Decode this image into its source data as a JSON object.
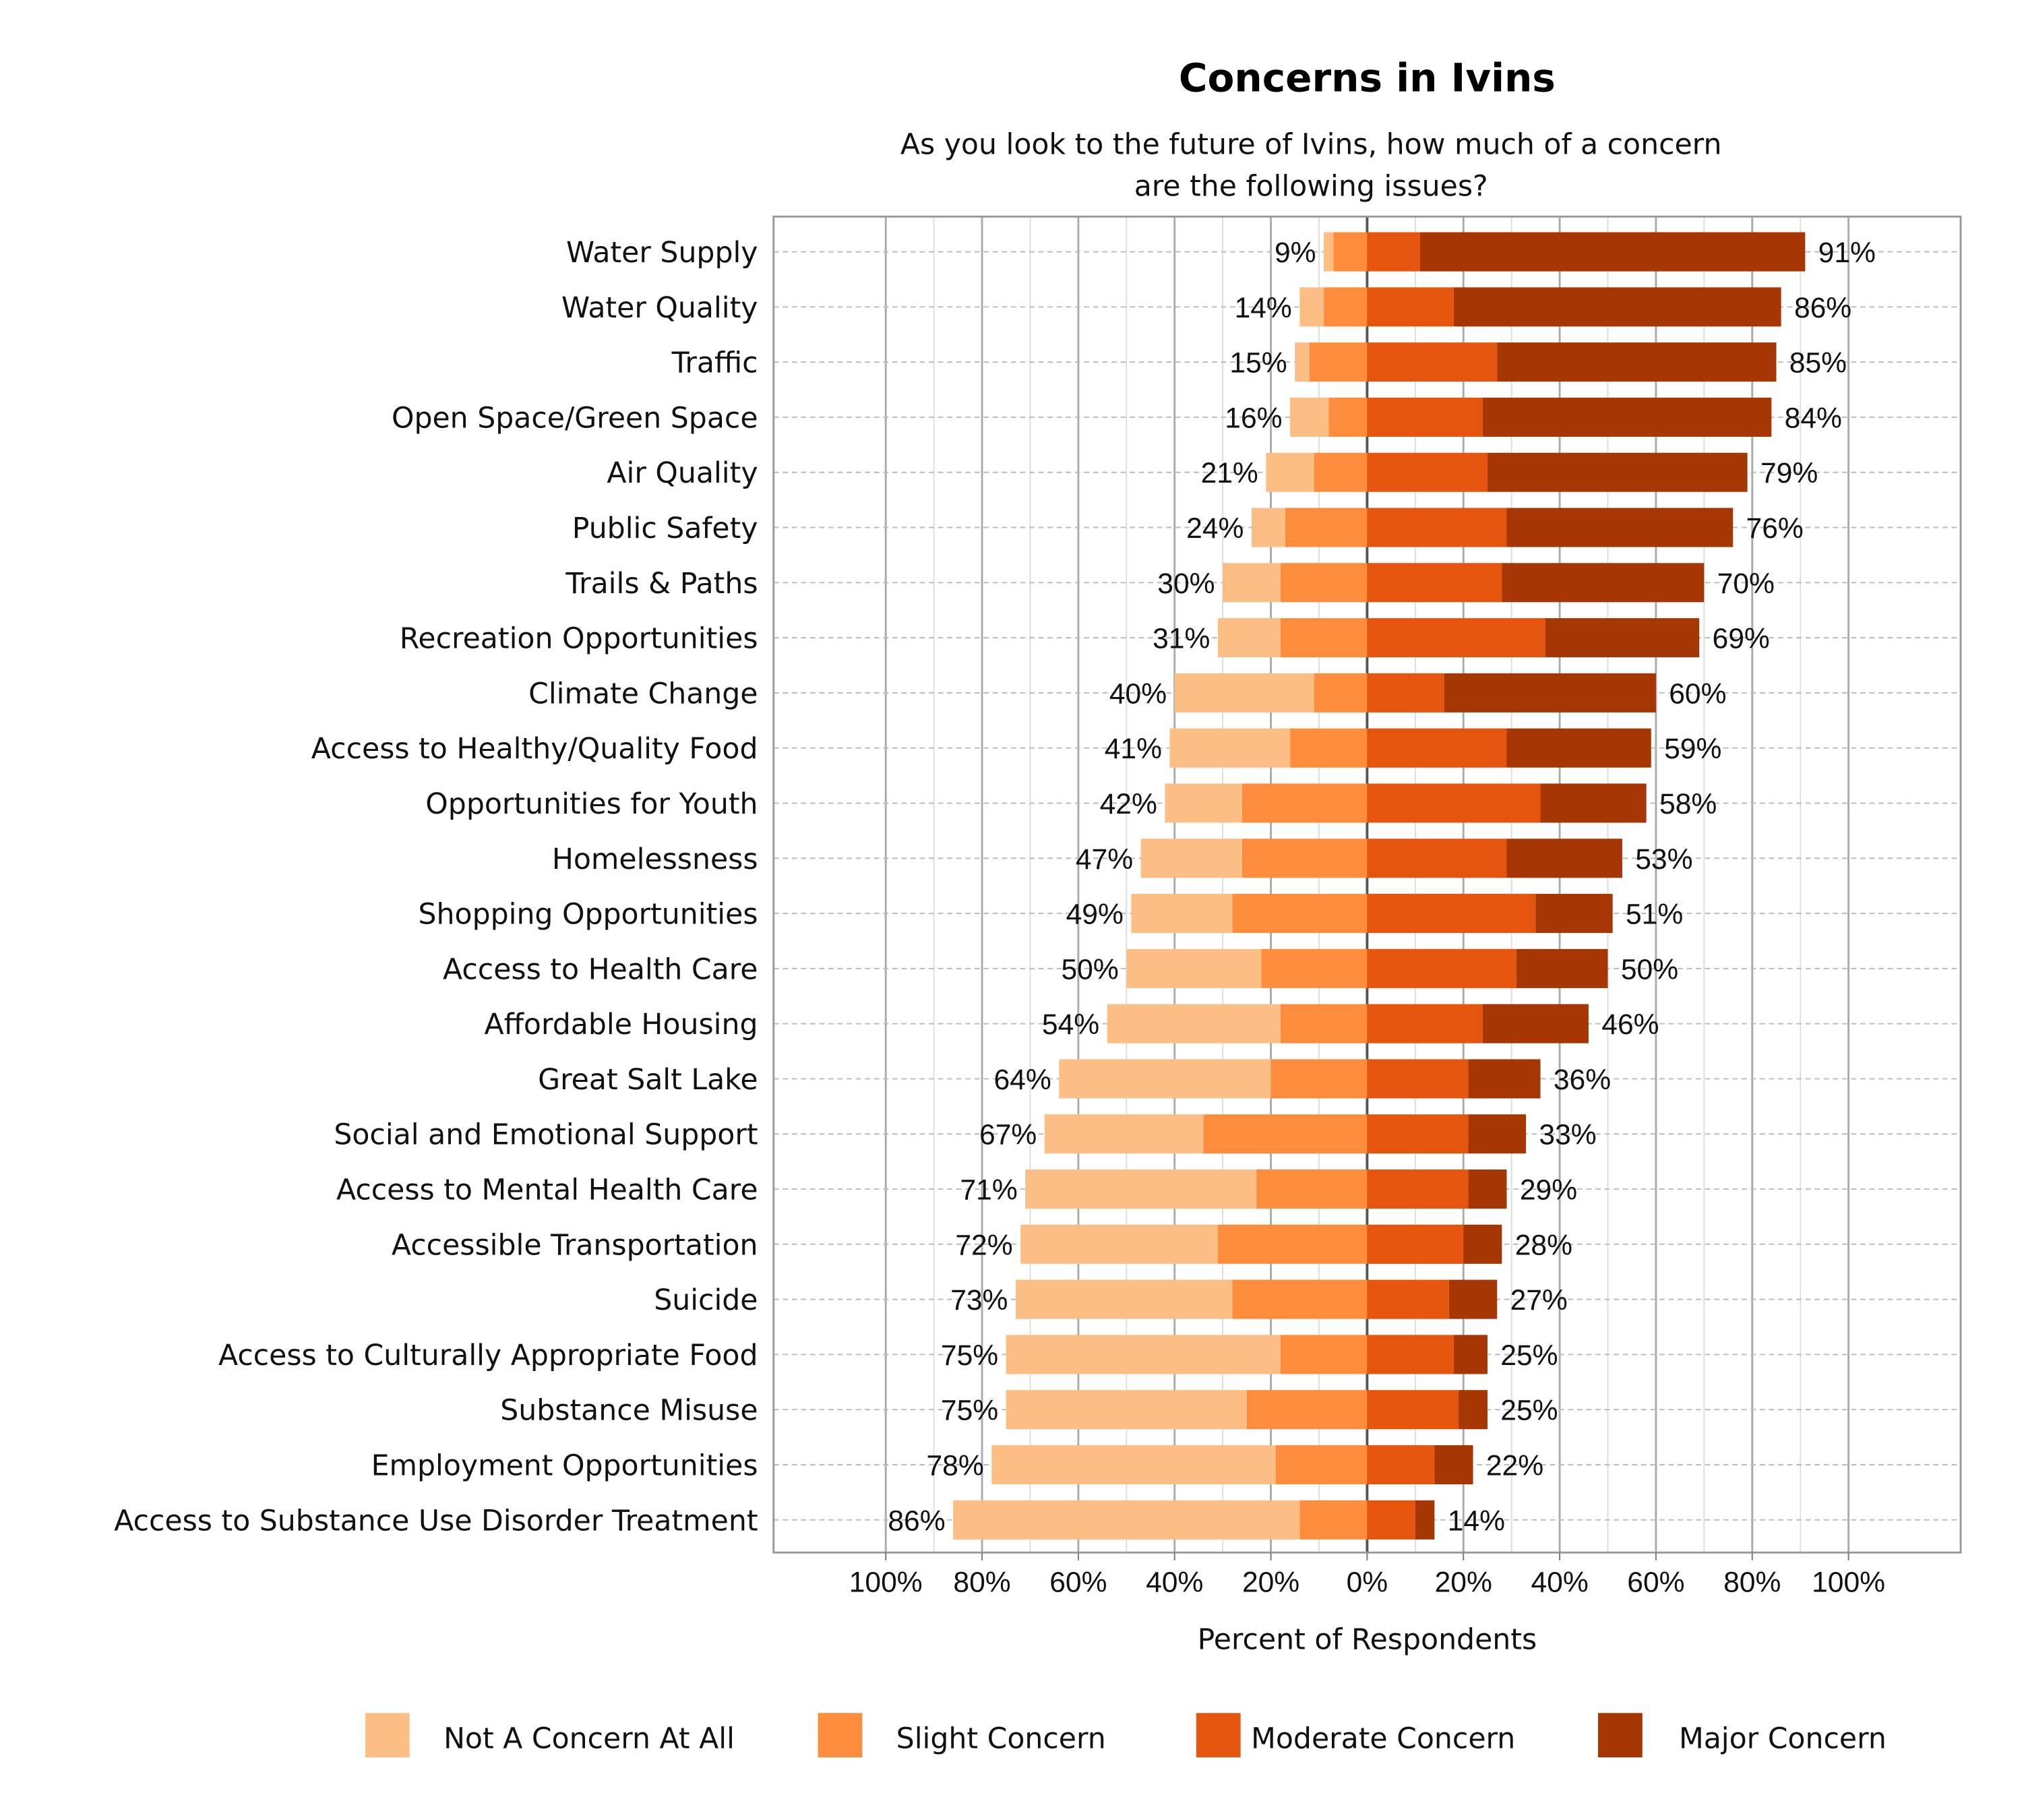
{
  "chart_data": {
    "type": "bar",
    "orientation": "horizontal-diverging-stacked",
    "title": "Concerns in Ivins",
    "subtitle": [
      "As you look to the future of Ivins, how much of a concern",
      "are the following issues?"
    ],
    "xlabel": "Percent of Respondents",
    "xlim": [
      -100,
      100
    ],
    "x_ticks": [
      "100%",
      "80%",
      "60%",
      "40%",
      "20%",
      "0%",
      "20%",
      "40%",
      "60%",
      "80%",
      "100%"
    ],
    "grid": true,
    "legend_position": "bottom",
    "categories": [
      "Water Supply",
      "Water Quality",
      "Traffic",
      "Open Space/Green Space",
      "Air Quality",
      "Public Safety",
      "Trails & Paths",
      "Recreation Opportunities",
      "Climate Change",
      "Access to Healthy/Quality Food",
      "Opportunities for Youth",
      "Homelessness",
      "Shopping Opportunities",
      "Access to Health Care",
      "Affordable Housing",
      "Great Salt Lake",
      "Social and Emotional Support",
      "Access to Mental Health Care",
      "Accessible Transportation",
      "Suicide",
      "Access to Culturally Appropriate Food",
      "Substance Misuse",
      "Employment Opportunities",
      "Access to Substance Use Disorder Treatment"
    ],
    "series": [
      {
        "name": "Not A Concern At All",
        "side": "left",
        "color": "#FDBE85",
        "values": [
          2,
          5,
          3,
          8,
          10,
          7,
          12,
          13,
          29,
          25,
          16,
          21,
          21,
          28,
          36,
          44,
          33,
          48,
          41,
          45,
          57,
          50,
          59,
          72
        ]
      },
      {
        "name": "Slight Concern",
        "side": "left",
        "color": "#FD8D3C",
        "values": [
          7,
          9,
          12,
          8,
          11,
          17,
          18,
          18,
          11,
          16,
          26,
          26,
          28,
          22,
          18,
          20,
          34,
          23,
          31,
          28,
          18,
          25,
          19,
          14
        ]
      },
      {
        "name": "Moderate Concern",
        "side": "right",
        "color": "#E6550D",
        "values": [
          11,
          18,
          27,
          24,
          25,
          29,
          28,
          37,
          16,
          29,
          36,
          29,
          35,
          31,
          24,
          21,
          21,
          21,
          20,
          17,
          18,
          19,
          14,
          10
        ]
      },
      {
        "name": "Major Concern",
        "side": "right",
        "color": "#A63603",
        "values": [
          80,
          68,
          58,
          60,
          54,
          47,
          42,
          32,
          44,
          30,
          22,
          24,
          16,
          19,
          22,
          15,
          12,
          8,
          8,
          10,
          7,
          6,
          8,
          4
        ]
      }
    ],
    "left_labels": [
      "9%",
      "14%",
      "15%",
      "16%",
      "21%",
      "24%",
      "30%",
      "31%",
      "40%",
      "41%",
      "42%",
      "47%",
      "49%",
      "50%",
      "54%",
      "64%",
      "67%",
      "71%",
      "72%",
      "73%",
      "75%",
      "75%",
      "78%",
      "86%"
    ],
    "right_labels": [
      "91%",
      "86%",
      "85%",
      "84%",
      "79%",
      "76%",
      "70%",
      "69%",
      "60%",
      "59%",
      "58%",
      "53%",
      "51%",
      "50%",
      "46%",
      "36%",
      "33%",
      "29%",
      "28%",
      "27%",
      "25%",
      "25%",
      "22%",
      "14%"
    ]
  }
}
